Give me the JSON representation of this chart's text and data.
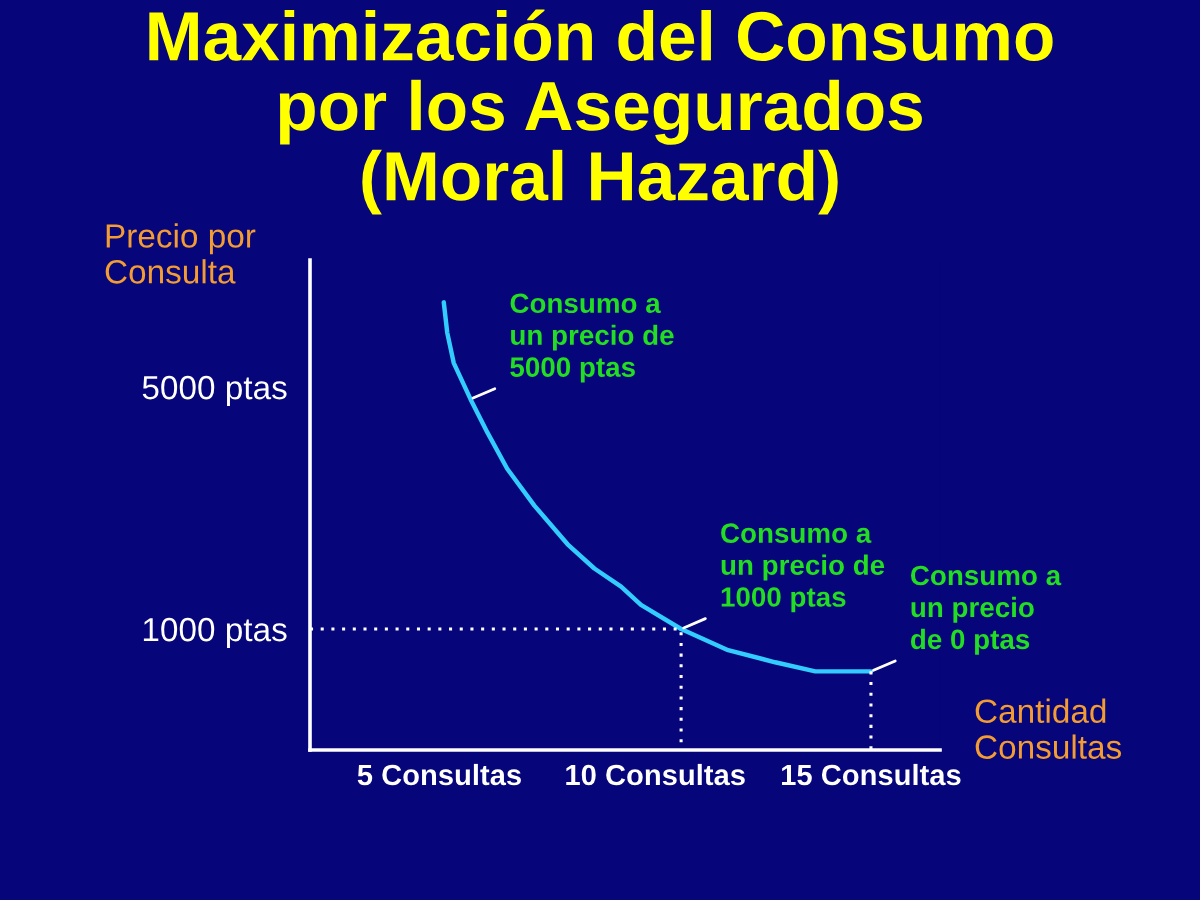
{
  "chart_data": {
    "type": "line",
    "title": "Maximización del Consumo\npor los Asegurados\n(Moral Hazard)",
    "xlabel": "Cantidad\nConsultas",
    "ylabel": "Precio por\nConsulta",
    "xlim": [
      2,
      16.6
    ],
    "ylim": [
      -1000,
      7100
    ],
    "xticks": [
      {
        "value": 5,
        "label": "5 Consultas"
      },
      {
        "value": 10,
        "label": "10 Consultas"
      },
      {
        "value": 15,
        "label": "15 Consultas"
      }
    ],
    "yticks": [
      {
        "value": 1000,
        "label": "1000 ptas"
      },
      {
        "value": 5000,
        "label": "5000 ptas"
      }
    ],
    "grid": false,
    "series": [
      {
        "color": "#33ccff",
        "x": [
          5.1,
          5.18,
          5.33,
          5.72,
          6.11,
          6.57,
          7.2,
          7.97,
          8.59,
          9.21,
          9.67,
          10.6,
          11.69,
          12.78,
          13.71,
          15.0
        ],
        "values": [
          6400,
          5900,
          5400,
          4800,
          4250,
          3650,
          3040,
          2400,
          2000,
          1700,
          1400,
          1000,
          650,
          450,
          300,
          300
        ]
      },
      {
        "color": "#ffffff",
        "line_style": "dotted",
        "x": [
          2,
          10.6,
          10.6
        ],
        "values": [
          1000,
          1000,
          -1000
        ]
      },
      {
        "color": "#ffffff",
        "line_style": "dotted",
        "x": [
          15,
          15
        ],
        "values": [
          300,
          -1000
        ]
      }
    ],
    "annotations": [
      {
        "text": "Consumo a\nun precio de\n5000 ptas",
        "x": 5.72,
        "y": 4800
      },
      {
        "text": "Consumo a\nun precio de\n1000 ptas",
        "x": 10.6,
        "y": 1000
      },
      {
        "text": "Consumo a\nun precio\nde 0 ptas",
        "x": 15.0,
        "y": 300
      }
    ]
  }
}
